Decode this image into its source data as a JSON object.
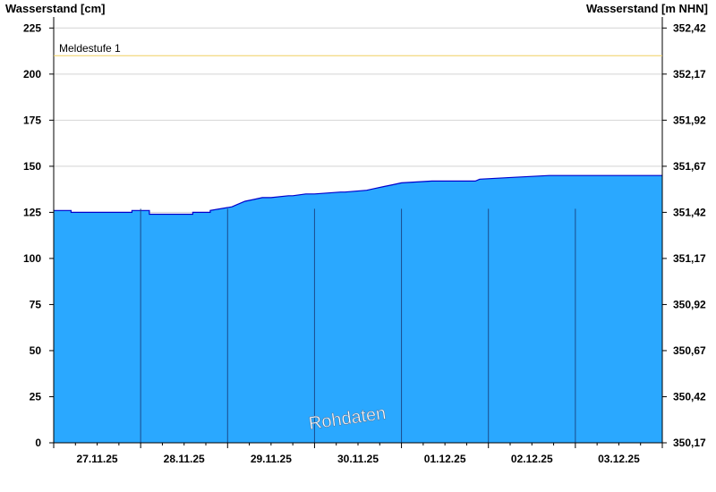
{
  "chart_data": {
    "type": "area",
    "ylabel_left": "Wasserstand [cm]",
    "ylabel_right": "Wasserstand [m NHN]",
    "yticks_left": [
      0,
      25,
      50,
      75,
      100,
      125,
      150,
      175,
      200,
      225
    ],
    "yticks_right": [
      "350,17",
      "350,42",
      "350,67",
      "350,92",
      "351,17",
      "351,42",
      "351,67",
      "351,92",
      "352,17",
      "352,42"
    ],
    "ylim": [
      0,
      230
    ],
    "xlim": [
      0,
      7
    ],
    "x_tick_labels": [
      "27.11.25",
      "28.11.25",
      "29.11.25",
      "30.11.25",
      "01.12.25",
      "02.12.25",
      "03.12.25"
    ],
    "meldestufe": {
      "label": "Meldestufe 1",
      "value": 210,
      "color": "#f0d060"
    },
    "series": [
      {
        "color": "#2aa8ff",
        "line_color": "#0000cc",
        "x": [
          0,
          0.2,
          0.2,
          0.9,
          0.9,
          1.1,
          1.1,
          1.6,
          1.6,
          1.8,
          1.8,
          2.05,
          2.1,
          2.2,
          2.3,
          2.4,
          2.5,
          2.7,
          2.75,
          2.9,
          3.0,
          3.3,
          3.35,
          3.6,
          3.7,
          3.8,
          3.9,
          4.0,
          4.35,
          4.45,
          4.85,
          4.9,
          5.3,
          5.7,
          5.75,
          7
        ],
        "y": [
          126,
          126,
          125,
          125,
          126,
          126,
          124,
          124,
          125,
          125,
          126,
          128,
          129,
          131,
          132,
          133,
          133,
          134,
          134,
          135,
          135,
          136,
          136,
          137,
          138,
          139,
          140,
          141,
          142,
          142,
          142,
          143,
          144,
          145,
          145,
          145
        ]
      }
    ],
    "annotation": "Rohdaten",
    "grid": "horizontal"
  }
}
